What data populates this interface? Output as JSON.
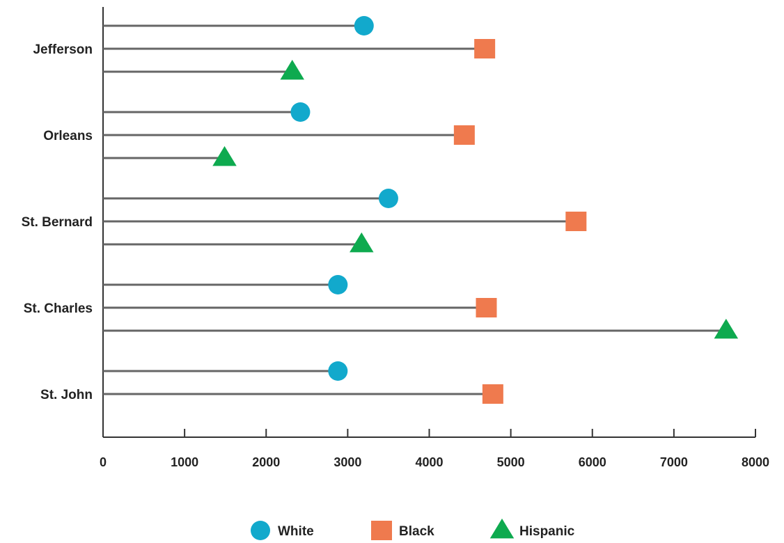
{
  "chart_data": {
    "type": "lollipop",
    "orientation": "horizontal",
    "categories": [
      "Jefferson",
      "Orleans",
      "St. Bernard",
      "St. Charles",
      "St. John"
    ],
    "series": [
      {
        "name": "White",
        "marker": "circle",
        "color": "#12A9CC",
        "values": [
          3200,
          2420,
          3500,
          2880,
          2880
        ]
      },
      {
        "name": "Black",
        "marker": "square",
        "color": "#EF7A4E",
        "values": [
          4680,
          4430,
          5800,
          4700,
          4780
        ]
      },
      {
        "name": "Hispanic",
        "marker": "triangle",
        "color": "#0EAA4F",
        "values": [
          2320,
          1490,
          3170,
          7640,
          null
        ]
      }
    ],
    "xlim": [
      0,
      8000
    ],
    "xticks": [
      "0",
      "1000",
      "2000",
      "3000",
      "4000",
      "5000",
      "6000",
      "7000",
      "8000"
    ],
    "title": "",
    "xlabel": "",
    "ylabel": "",
    "legend": {
      "position": "bottom",
      "items": [
        "White",
        "Black",
        "Hispanic"
      ]
    },
    "grid": false,
    "axis_color": "#333333",
    "stem_color": "#666666"
  }
}
